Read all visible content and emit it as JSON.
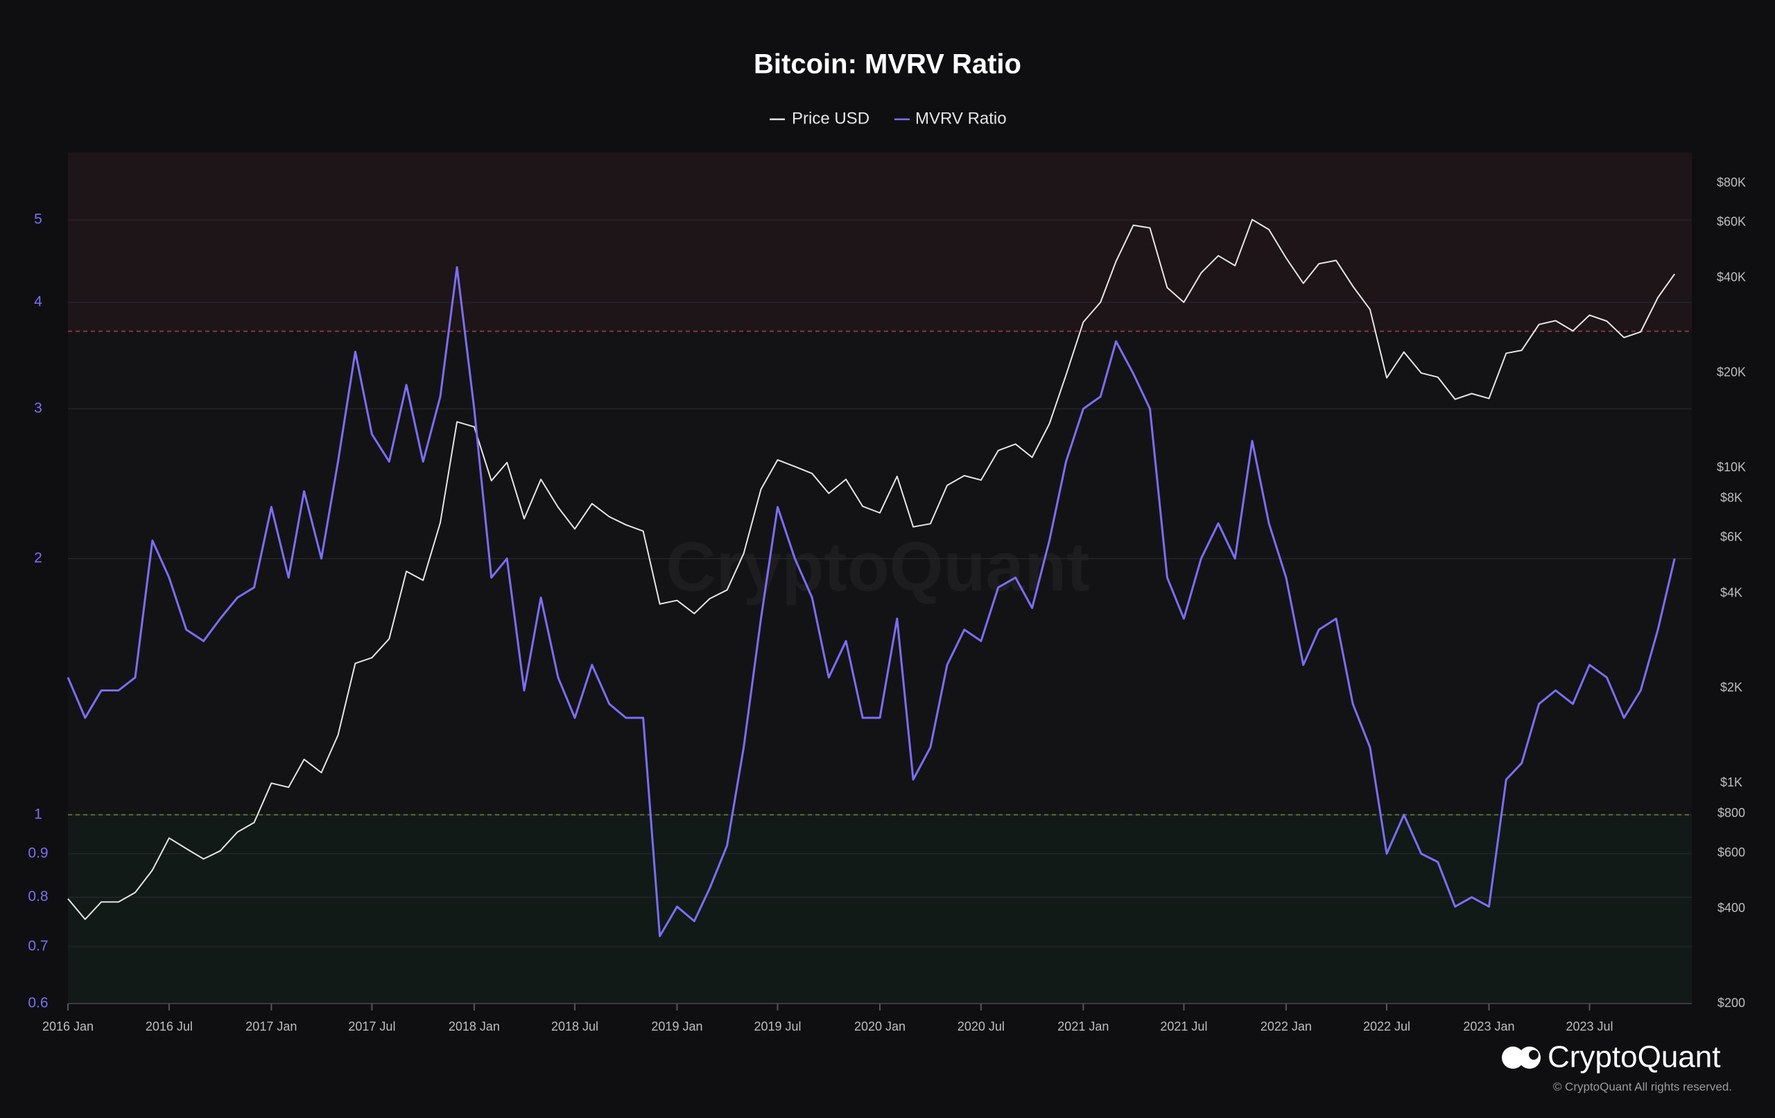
{
  "chart_data": {
    "type": "line",
    "title": "Bitcoin: MVRV Ratio",
    "watermark": "CryptoQuant",
    "brand": "CryptoQuant",
    "copyright": "© CryptoQuant All rights reserved.",
    "x": [
      "2016-01",
      "2016-02",
      "2016-03",
      "2016-04",
      "2016-05",
      "2016-06",
      "2016-07",
      "2016-08",
      "2016-09",
      "2016-10",
      "2016-11",
      "2016-12",
      "2017-01",
      "2017-02",
      "2017-03",
      "2017-04",
      "2017-05",
      "2017-06",
      "2017-07",
      "2017-08",
      "2017-09",
      "2017-10",
      "2017-11",
      "2017-12",
      "2018-01",
      "2018-02",
      "2018-03",
      "2018-04",
      "2018-05",
      "2018-06",
      "2018-07",
      "2018-08",
      "2018-09",
      "2018-10",
      "2018-11",
      "2018-12",
      "2019-01",
      "2019-02",
      "2019-03",
      "2019-04",
      "2019-05",
      "2019-06",
      "2019-07",
      "2019-08",
      "2019-09",
      "2019-10",
      "2019-11",
      "2019-12",
      "2020-01",
      "2020-02",
      "2020-03",
      "2020-04",
      "2020-05",
      "2020-06",
      "2020-07",
      "2020-08",
      "2020-09",
      "2020-10",
      "2020-11",
      "2020-12",
      "2021-01",
      "2021-02",
      "2021-03",
      "2021-04",
      "2021-05",
      "2021-06",
      "2021-07",
      "2021-08",
      "2021-09",
      "2021-10",
      "2021-11",
      "2021-12",
      "2022-01",
      "2022-02",
      "2022-03",
      "2022-04",
      "2022-05",
      "2022-06",
      "2022-07",
      "2022-08",
      "2022-09",
      "2022-10",
      "2022-11",
      "2022-12",
      "2023-01",
      "2023-02",
      "2023-03",
      "2023-04",
      "2023-05",
      "2023-06",
      "2023-07",
      "2023-08",
      "2023-09",
      "2023-10",
      "2023-11",
      "2023-12"
    ],
    "series": [
      {
        "name": "Price USD",
        "color": "#e6e6e6",
        "axis": "y2",
        "values": [
          430,
          370,
          420,
          420,
          450,
          530,
          670,
          620,
          575,
          610,
          700,
          750,
          1000,
          970,
          1190,
          1080,
          1420,
          2400,
          2500,
          2870,
          4700,
          4400,
          6700,
          14000,
          13500,
          9100,
          10400,
          6900,
          9200,
          7500,
          6400,
          7700,
          7000,
          6600,
          6300,
          3700,
          3800,
          3450,
          3850,
          4100,
          5350,
          8550,
          10600,
          10100,
          9600,
          8300,
          9200,
          7550,
          7200,
          9400,
          6500,
          6650,
          8800,
          9450,
          9150,
          11350,
          11900,
          10800,
          13800,
          19700,
          29000,
          33500,
          45200,
          58800,
          57700,
          37300,
          33500,
          41500,
          47100,
          43800,
          61300,
          57000,
          46300,
          38500,
          44400,
          45500,
          37700,
          31800,
          19300,
          23300,
          20000,
          19400,
          16500,
          17200,
          16600,
          23100,
          23600,
          28500,
          29300,
          27200,
          30500,
          29200,
          25900,
          27000,
          34700,
          41200
        ]
      },
      {
        "name": "MVRV Ratio",
        "color": "#7b6ef6",
        "values": [
          1.45,
          1.3,
          1.4,
          1.4,
          1.45,
          2.1,
          1.9,
          1.65,
          1.6,
          1.7,
          1.8,
          1.85,
          2.3,
          1.9,
          2.4,
          2.0,
          2.6,
          3.5,
          2.8,
          2.6,
          3.2,
          2.6,
          3.1,
          4.4,
          3.0,
          1.9,
          2.0,
          1.4,
          1.8,
          1.45,
          1.3,
          1.5,
          1.35,
          1.3,
          1.3,
          0.72,
          0.78,
          0.75,
          0.82,
          0.92,
          1.2,
          1.7,
          2.3,
          2.0,
          1.8,
          1.45,
          1.6,
          1.3,
          1.3,
          1.7,
          1.1,
          1.2,
          1.5,
          1.65,
          1.6,
          1.85,
          1.9,
          1.75,
          2.1,
          2.6,
          3.0,
          3.1,
          3.6,
          3.3,
          3.0,
          1.9,
          1.7,
          2.0,
          2.2,
          2.0,
          2.75,
          2.2,
          1.9,
          1.5,
          1.65,
          1.7,
          1.35,
          1.2,
          0.9,
          1.0,
          0.9,
          0.88,
          0.78,
          0.8,
          0.78,
          1.1,
          1.15,
          1.35,
          1.4,
          1.35,
          1.5,
          1.45,
          1.3,
          1.4,
          1.65,
          2.0
        ]
      }
    ],
    "xlim": [
      "2016-01",
      "2024-01"
    ],
    "xticks": [
      {
        "value": "2016-01",
        "label": "2016 Jan"
      },
      {
        "value": "2016-07",
        "label": "2016 Jul"
      },
      {
        "value": "2017-01",
        "label": "2017 Jan"
      },
      {
        "value": "2017-07",
        "label": "2017 Jul"
      },
      {
        "value": "2018-01",
        "label": "2018 Jan"
      },
      {
        "value": "2018-07",
        "label": "2018 Jul"
      },
      {
        "value": "2019-01",
        "label": "2019 Jan"
      },
      {
        "value": "2019-07",
        "label": "2019 Jul"
      },
      {
        "value": "2020-01",
        "label": "2020 Jan"
      },
      {
        "value": "2020-07",
        "label": "2020 Jul"
      },
      {
        "value": "2021-01",
        "label": "2021 Jan"
      },
      {
        "value": "2021-07",
        "label": "2021 Jul"
      },
      {
        "value": "2022-01",
        "label": "2022 Jan"
      },
      {
        "value": "2022-07",
        "label": "2022 Jul"
      },
      {
        "value": "2023-01",
        "label": "2023 Jan"
      },
      {
        "value": "2023-07",
        "label": "2023 Jul"
      }
    ],
    "ylim": [
      0.6,
      6
    ],
    "yticks": [
      0.6,
      0.7,
      0.8,
      0.9,
      1,
      2,
      3,
      4,
      5
    ],
    "y_log": true,
    "y2lim": [
      200,
      100000
    ],
    "y2ticks": [
      {
        "value": 200,
        "label": "$200"
      },
      {
        "value": 400,
        "label": "$400"
      },
      {
        "value": 600,
        "label": "$600"
      },
      {
        "value": 800,
        "label": "$800"
      },
      {
        "value": 1000,
        "label": "$1K"
      },
      {
        "value": 2000,
        "label": "$2K"
      },
      {
        "value": 4000,
        "label": "$4K"
      },
      {
        "value": 6000,
        "label": "$6K"
      },
      {
        "value": 8000,
        "label": "$8K"
      },
      {
        "value": 10000,
        "label": "$10K"
      },
      {
        "value": 20000,
        "label": "$20K"
      },
      {
        "value": 40000,
        "label": "$40K"
      },
      {
        "value": 60000,
        "label": "$60K"
      },
      {
        "value": 80000,
        "label": "$80K"
      }
    ],
    "y2_log": true,
    "grid": true,
    "zones": [
      {
        "from": 3.7,
        "to": 6,
        "color": "#1d1518"
      },
      {
        "from": 0.6,
        "to": 1,
        "color": "#121a17"
      }
    ],
    "thresholds": [
      {
        "value": 3.7,
        "color": "#8c3542"
      },
      {
        "value": 1,
        "color": "#5d6a38"
      }
    ]
  }
}
